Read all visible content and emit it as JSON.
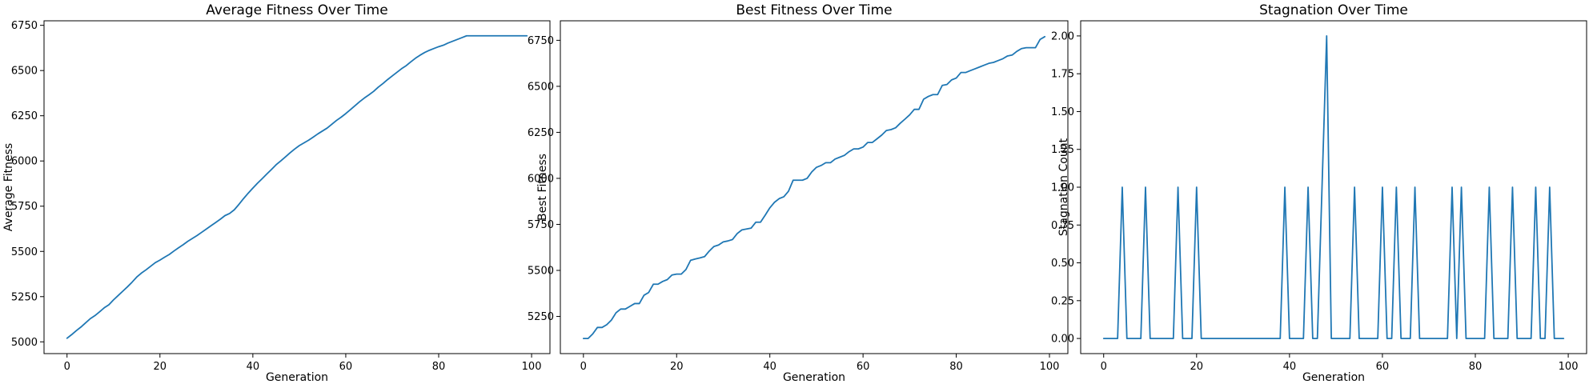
{
  "colors": {
    "series": "#1f77b4"
  },
  "chart_data": [
    {
      "type": "line",
      "title": "Average Fitness Over Time",
      "xlabel": "Generation",
      "ylabel": "Average Fitness",
      "xlim": [
        -4.95,
        103.95
      ],
      "ylim": [
        4935,
        6775
      ],
      "xticks": [
        0,
        20,
        40,
        60,
        80,
        100
      ],
      "xtick_labels": [
        "0",
        "20",
        "40",
        "60",
        "80",
        "100"
      ],
      "yticks": [
        5000,
        5250,
        5500,
        5750,
        6000,
        6250,
        6500,
        6750
      ],
      "ytick_labels": [
        "5000",
        "5250",
        "5500",
        "5750",
        "6000",
        "6250",
        "6500",
        "6750"
      ],
      "grid": false,
      "series": [
        {
          "x": [
            0,
            1,
            2,
            3,
            4,
            5,
            6,
            7,
            8,
            9,
            10,
            11,
            12,
            13,
            14,
            15,
            16,
            17,
            18,
            19,
            20,
            21,
            22,
            23,
            24,
            25,
            26,
            27,
            28,
            29,
            30,
            31,
            32,
            33,
            34,
            35,
            36,
            37,
            38,
            39,
            40,
            41,
            42,
            43,
            44,
            45,
            46,
            47,
            48,
            49,
            50,
            51,
            52,
            53,
            54,
            55,
            56,
            57,
            58,
            59,
            60,
            61,
            62,
            63,
            64,
            65,
            66,
            67,
            68,
            69,
            70,
            71,
            72,
            73,
            74,
            75,
            76,
            77,
            78,
            79,
            80,
            81,
            82,
            83,
            84,
            85,
            86,
            87,
            88,
            89,
            90,
            91,
            92,
            93,
            94,
            95,
            96,
            97,
            98,
            99
          ],
          "y": [
            5020,
            5040,
            5062,
            5082,
            5105,
            5128,
            5145,
            5166,
            5188,
            5205,
            5232,
            5256,
            5280,
            5304,
            5330,
            5358,
            5380,
            5398,
            5418,
            5438,
            5452,
            5468,
            5483,
            5502,
            5520,
            5537,
            5556,
            5572,
            5588,
            5606,
            5624,
            5642,
            5660,
            5678,
            5698,
            5710,
            5730,
            5760,
            5792,
            5822,
            5850,
            5877,
            5902,
            5928,
            5953,
            5979,
            6000,
            6022,
            6045,
            6066,
            6085,
            6100,
            6115,
            6132,
            6150,
            6166,
            6182,
            6203,
            6224,
            6242,
            6262,
            6284,
            6306,
            6328,
            6348,
            6366,
            6385,
            6408,
            6428,
            6450,
            6470,
            6490,
            6510,
            6527,
            6548,
            6568,
            6585,
            6600,
            6612,
            6622,
            6632,
            6640,
            6652,
            6662,
            6672,
            6682,
            6692,
            6692,
            6692,
            6692,
            6692,
            6692,
            6692,
            6692,
            6692,
            6692,
            6692,
            6692,
            6692,
            6692
          ]
        }
      ]
    },
    {
      "type": "line",
      "title": "Best Fitness Over Time",
      "xlabel": "Generation",
      "ylabel": "Best Fitness",
      "xlim": [
        -4.95,
        103.95
      ],
      "ylim": [
        5048,
        6856
      ],
      "xticks": [
        0,
        20,
        40,
        60,
        80,
        100
      ],
      "xtick_labels": [
        "0",
        "20",
        "40",
        "60",
        "80",
        "100"
      ],
      "yticks": [
        5250,
        5500,
        5750,
        6000,
        6250,
        6500,
        6750
      ],
      "ytick_labels": [
        "5250",
        "5500",
        "5750",
        "6000",
        "6250",
        "6500",
        "6750"
      ],
      "grid": false,
      "series": [
        {
          "x": [
            0,
            1,
            2,
            3,
            4,
            5,
            6,
            7,
            8,
            9,
            10,
            11,
            12,
            13,
            14,
            15,
            16,
            17,
            18,
            19,
            20,
            21,
            22,
            23,
            24,
            25,
            26,
            27,
            28,
            29,
            30,
            31,
            32,
            33,
            34,
            35,
            36,
            37,
            38,
            39,
            40,
            41,
            42,
            43,
            44,
            45,
            46,
            47,
            48,
            49,
            50,
            51,
            52,
            53,
            54,
            55,
            56,
            57,
            58,
            59,
            60,
            61,
            62,
            63,
            64,
            65,
            66,
            67,
            68,
            69,
            70,
            71,
            72,
            73,
            74,
            75,
            76,
            77,
            78,
            79,
            80,
            81,
            82,
            83,
            84,
            85,
            86,
            87,
            88,
            89,
            90,
            91,
            92,
            93,
            94,
            95,
            96,
            97,
            98,
            99
          ],
          "y": [
            5130,
            5130,
            5155,
            5190,
            5190,
            5205,
            5230,
            5270,
            5290,
            5290,
            5305,
            5320,
            5320,
            5365,
            5380,
            5425,
            5425,
            5440,
            5450,
            5475,
            5480,
            5480,
            5505,
            5555,
            5562,
            5568,
            5575,
            5605,
            5630,
            5638,
            5655,
            5660,
            5668,
            5700,
            5720,
            5725,
            5730,
            5762,
            5762,
            5800,
            5840,
            5870,
            5890,
            5900,
            5930,
            5990,
            5990,
            5990,
            6000,
            6035,
            6060,
            6070,
            6085,
            6085,
            6105,
            6115,
            6125,
            6145,
            6160,
            6160,
            6170,
            6195,
            6195,
            6215,
            6235,
            6260,
            6265,
            6275,
            6300,
            6322,
            6345,
            6375,
            6375,
            6430,
            6445,
            6455,
            6455,
            6505,
            6510,
            6535,
            6545,
            6575,
            6575,
            6585,
            6595,
            6605,
            6615,
            6625,
            6630,
            6640,
            6650,
            6665,
            6670,
            6690,
            6705,
            6710,
            6710,
            6710,
            6755,
            6770
          ]
        }
      ]
    },
    {
      "type": "line",
      "title": "Stagnation Over Time",
      "xlabel": "Generation",
      "ylabel": "Stagnation Count",
      "xlim": [
        -4.95,
        103.95
      ],
      "ylim": [
        -0.1,
        2.1
      ],
      "xticks": [
        0,
        20,
        40,
        60,
        80,
        100
      ],
      "xtick_labels": [
        "0",
        "20",
        "40",
        "60",
        "80",
        "100"
      ],
      "yticks": [
        0,
        0.25,
        0.5,
        0.75,
        1,
        1.25,
        1.5,
        1.75,
        2
      ],
      "ytick_labels": [
        "0.00",
        "0.25",
        "0.50",
        "0.75",
        "1.00",
        "1.25",
        "1.50",
        "1.75",
        "2.00"
      ],
      "grid": false,
      "series": [
        {
          "x": [
            0,
            1,
            2,
            3,
            4,
            5,
            6,
            7,
            8,
            9,
            10,
            11,
            12,
            13,
            14,
            15,
            16,
            17,
            18,
            19,
            20,
            21,
            22,
            23,
            24,
            25,
            26,
            27,
            28,
            29,
            30,
            31,
            32,
            33,
            34,
            35,
            36,
            37,
            38,
            39,
            40,
            41,
            42,
            43,
            44,
            45,
            46,
            47,
            48,
            49,
            50,
            51,
            52,
            53,
            54,
            55,
            56,
            57,
            58,
            59,
            60,
            61,
            62,
            63,
            64,
            65,
            66,
            67,
            68,
            69,
            70,
            71,
            72,
            73,
            74,
            75,
            76,
            77,
            78,
            79,
            80,
            81,
            82,
            83,
            84,
            85,
            86,
            87,
            88,
            89,
            90,
            91,
            92,
            93,
            94,
            95,
            96,
            97,
            98,
            99
          ],
          "y": [
            0,
            0,
            0,
            0,
            1,
            0,
            0,
            0,
            0,
            1,
            0,
            0,
            0,
            0,
            0,
            0,
            1,
            0,
            0,
            0,
            1,
            0,
            0,
            0,
            0,
            0,
            0,
            0,
            0,
            0,
            0,
            0,
            0,
            0,
            0,
            0,
            0,
            0,
            0,
            1,
            0,
            0,
            0,
            0,
            1,
            0,
            0,
            1,
            2,
            0,
            0,
            0,
            0,
            0,
            1,
            0,
            0,
            0,
            0,
            0,
            1,
            0,
            0,
            1,
            0,
            0,
            0,
            1,
            0,
            0,
            0,
            0,
            0,
            0,
            0,
            1,
            0,
            1,
            0,
            0,
            0,
            0,
            0,
            1,
            0,
            0,
            0,
            0,
            1,
            0,
            0,
            0,
            0,
            1,
            0,
            0,
            1,
            0,
            0,
            0
          ]
        }
      ]
    }
  ]
}
